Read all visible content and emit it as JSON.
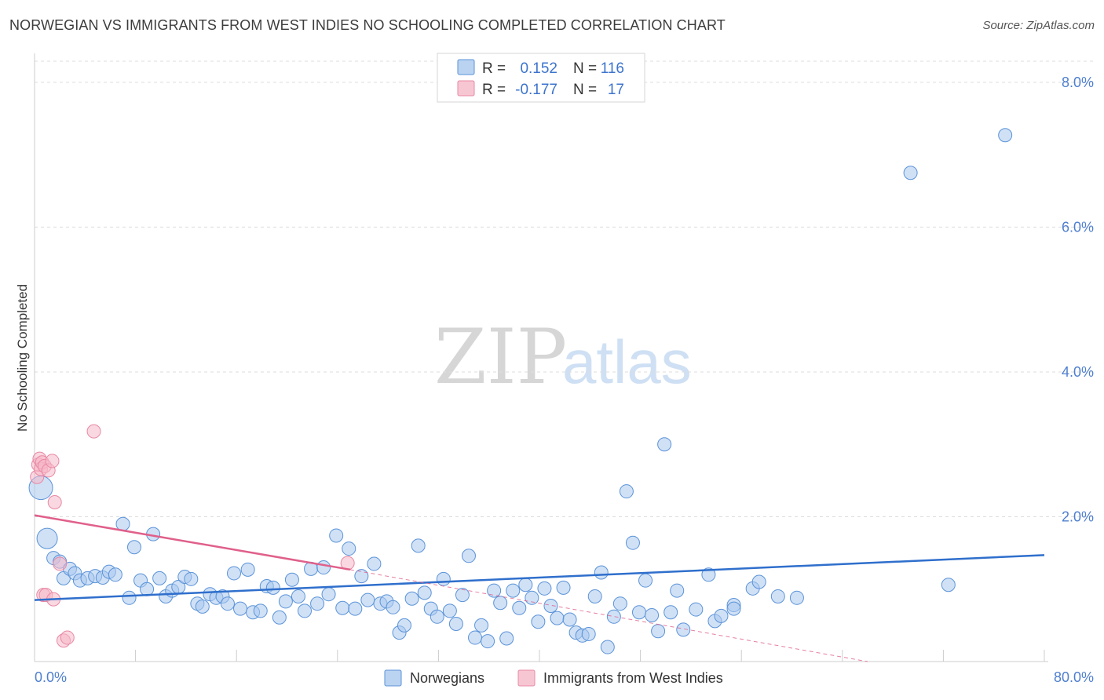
{
  "header": {
    "title": "NORWEGIAN VS IMMIGRANTS FROM WEST INDIES NO SCHOOLING COMPLETED CORRELATION CHART",
    "source": "Source: ZipAtlas.com"
  },
  "watermark": {
    "zip": "ZIP",
    "atlas": "atlas"
  },
  "colors": {
    "blue_fill": "#a9c8ee",
    "blue_stroke": "#5b93d8",
    "blue_line": "#2f6fcc",
    "pink_fill": "#f5b8c8",
    "pink_stroke": "#e888a4",
    "pink_line": "#e0608a",
    "grid": "#dddddd",
    "tick_text": "#4f7fcf"
  },
  "legend": {
    "rows": [
      {
        "r_label": "R =",
        "r_value": "0.152",
        "n_label": "N =",
        "n_value": "116"
      },
      {
        "r_label": "R =",
        "r_value": "-0.177",
        "n_label": "N =",
        "n_value": "17"
      }
    ]
  },
  "chart_data": {
    "type": "scatter",
    "title": "NORWEGIAN VS IMMIGRANTS FROM WEST INDIES NO SCHOOLING COMPLETED CORRELATION CHART",
    "xlabel": "",
    "ylabel": "No Schooling Completed",
    "xlim": [
      0,
      80
    ],
    "ylim": [
      0,
      8.4
    ],
    "x_tick_labels": [
      "0.0%",
      "80.0%"
    ],
    "y_tick_labels": [
      "2.0%",
      "4.0%",
      "6.0%",
      "8.0%"
    ],
    "y_ticks": [
      2,
      4,
      6,
      8
    ],
    "legend_position": "bottom-center",
    "series": [
      {
        "name": "Norwegians",
        "color": "#a9c8ee",
        "r": 0.152,
        "n": 116,
        "trend": {
          "x": [
            0,
            80
          ],
          "y": [
            0.85,
            1.47
          ]
        },
        "trend_style": "solid",
        "points": [
          {
            "x": 0.5,
            "y": 2.4,
            "s": "xl"
          },
          {
            "x": 1.0,
            "y": 1.7,
            "s": "l"
          },
          {
            "x": 1.5,
            "y": 1.43
          },
          {
            "x": 2.0,
            "y": 1.38
          },
          {
            "x": 2.3,
            "y": 1.15
          },
          {
            "x": 2.8,
            "y": 1.28
          },
          {
            "x": 3.2,
            "y": 1.22
          },
          {
            "x": 3.6,
            "y": 1.12
          },
          {
            "x": 4.2,
            "y": 1.15
          },
          {
            "x": 4.8,
            "y": 1.18
          },
          {
            "x": 5.4,
            "y": 1.16
          },
          {
            "x": 5.9,
            "y": 1.24
          },
          {
            "x": 6.4,
            "y": 1.2
          },
          {
            "x": 7.0,
            "y": 1.9
          },
          {
            "x": 7.5,
            "y": 0.88
          },
          {
            "x": 7.9,
            "y": 1.58
          },
          {
            "x": 8.4,
            "y": 1.12
          },
          {
            "x": 8.9,
            "y": 1.0
          },
          {
            "x": 9.4,
            "y": 1.76
          },
          {
            "x": 9.9,
            "y": 1.15
          },
          {
            "x": 10.4,
            "y": 0.9
          },
          {
            "x": 10.9,
            "y": 0.98
          },
          {
            "x": 11.4,
            "y": 1.03
          },
          {
            "x": 11.9,
            "y": 1.17
          },
          {
            "x": 12.4,
            "y": 1.14
          },
          {
            "x": 12.9,
            "y": 0.8
          },
          {
            "x": 13.3,
            "y": 0.76
          },
          {
            "x": 13.9,
            "y": 0.93
          },
          {
            "x": 14.4,
            "y": 0.88
          },
          {
            "x": 14.9,
            "y": 0.9
          },
          {
            "x": 15.3,
            "y": 0.8
          },
          {
            "x": 15.8,
            "y": 1.22
          },
          {
            "x": 16.3,
            "y": 0.73
          },
          {
            "x": 16.9,
            "y": 1.27
          },
          {
            "x": 17.3,
            "y": 0.68
          },
          {
            "x": 17.9,
            "y": 0.7
          },
          {
            "x": 18.4,
            "y": 1.04
          },
          {
            "x": 18.9,
            "y": 1.02
          },
          {
            "x": 19.4,
            "y": 0.61
          },
          {
            "x": 19.9,
            "y": 0.83
          },
          {
            "x": 20.4,
            "y": 1.13
          },
          {
            "x": 20.9,
            "y": 0.9
          },
          {
            "x": 21.4,
            "y": 0.7
          },
          {
            "x": 21.9,
            "y": 1.28
          },
          {
            "x": 22.4,
            "y": 0.8
          },
          {
            "x": 22.9,
            "y": 1.3
          },
          {
            "x": 23.3,
            "y": 0.93
          },
          {
            "x": 23.9,
            "y": 1.74
          },
          {
            "x": 24.4,
            "y": 0.74
          },
          {
            "x": 24.9,
            "y": 1.56
          },
          {
            "x": 25.4,
            "y": 0.73
          },
          {
            "x": 25.9,
            "y": 1.18
          },
          {
            "x": 26.4,
            "y": 0.85
          },
          {
            "x": 26.9,
            "y": 1.35
          },
          {
            "x": 27.4,
            "y": 0.8
          },
          {
            "x": 27.9,
            "y": 0.83
          },
          {
            "x": 28.4,
            "y": 0.75
          },
          {
            "x": 28.9,
            "y": 0.4
          },
          {
            "x": 29.3,
            "y": 0.5
          },
          {
            "x": 29.9,
            "y": 0.87
          },
          {
            "x": 30.4,
            "y": 1.6
          },
          {
            "x": 30.9,
            "y": 0.95
          },
          {
            "x": 31.4,
            "y": 0.73
          },
          {
            "x": 31.9,
            "y": 0.62
          },
          {
            "x": 32.4,
            "y": 1.14
          },
          {
            "x": 32.9,
            "y": 0.7
          },
          {
            "x": 33.4,
            "y": 0.52
          },
          {
            "x": 33.9,
            "y": 0.92
          },
          {
            "x": 34.4,
            "y": 1.46
          },
          {
            "x": 34.9,
            "y": 0.33
          },
          {
            "x": 35.4,
            "y": 0.5
          },
          {
            "x": 35.9,
            "y": 0.28
          },
          {
            "x": 36.4,
            "y": 0.98
          },
          {
            "x": 36.9,
            "y": 0.81
          },
          {
            "x": 37.4,
            "y": 0.32
          },
          {
            "x": 37.9,
            "y": 0.98
          },
          {
            "x": 38.4,
            "y": 0.74
          },
          {
            "x": 38.9,
            "y": 1.06
          },
          {
            "x": 39.4,
            "y": 0.88
          },
          {
            "x": 39.9,
            "y": 0.55
          },
          {
            "x": 40.4,
            "y": 1.01
          },
          {
            "x": 40.9,
            "y": 0.77
          },
          {
            "x": 41.4,
            "y": 0.6
          },
          {
            "x": 41.9,
            "y": 1.02
          },
          {
            "x": 42.4,
            "y": 0.58
          },
          {
            "x": 42.9,
            "y": 0.4
          },
          {
            "x": 43.4,
            "y": 0.36
          },
          {
            "x": 43.9,
            "y": 0.38
          },
          {
            "x": 44.4,
            "y": 0.9
          },
          {
            "x": 44.9,
            "y": 1.23
          },
          {
            "x": 45.4,
            "y": 0.2
          },
          {
            "x": 45.9,
            "y": 0.62
          },
          {
            "x": 46.4,
            "y": 0.8
          },
          {
            "x": 46.9,
            "y": 2.35
          },
          {
            "x": 47.4,
            "y": 1.64
          },
          {
            "x": 47.9,
            "y": 0.68
          },
          {
            "x": 48.4,
            "y": 1.12
          },
          {
            "x": 48.9,
            "y": 0.64
          },
          {
            "x": 49.4,
            "y": 0.42
          },
          {
            "x": 49.9,
            "y": 3.0
          },
          {
            "x": 50.4,
            "y": 0.68
          },
          {
            "x": 50.9,
            "y": 0.98
          },
          {
            "x": 51.4,
            "y": 0.44
          },
          {
            "x": 52.4,
            "y": 0.72
          },
          {
            "x": 53.4,
            "y": 1.2
          },
          {
            "x": 53.9,
            "y": 0.56
          },
          {
            "x": 54.4,
            "y": 0.63
          },
          {
            "x": 55.4,
            "y": 0.78
          },
          {
            "x": 56.9,
            "y": 1.01
          },
          {
            "x": 57.4,
            "y": 1.1
          },
          {
            "x": 58.9,
            "y": 0.9
          },
          {
            "x": 60.4,
            "y": 0.88
          },
          {
            "x": 69.4,
            "y": 6.75
          },
          {
            "x": 72.4,
            "y": 1.06
          },
          {
            "x": 76.9,
            "y": 7.27
          },
          {
            "x": 55.4,
            "y": 0.73
          }
        ]
      },
      {
        "name": "Immigrants from West Indies",
        "color": "#f5b8c8",
        "r": -0.177,
        "n": 17,
        "trend": {
          "x": [
            0,
            25
          ],
          "y": [
            2.02,
            1.27
          ]
        },
        "trend_dashed_extension": {
          "x": [
            25,
            66
          ],
          "y": [
            1.27,
            0.0
          ]
        },
        "points": [
          {
            "x": 0.2,
            "y": 2.55
          },
          {
            "x": 0.3,
            "y": 2.72
          },
          {
            "x": 0.4,
            "y": 2.8
          },
          {
            "x": 0.5,
            "y": 2.66
          },
          {
            "x": 0.6,
            "y": 2.75
          },
          {
            "x": 0.7,
            "y": 0.92
          },
          {
            "x": 0.8,
            "y": 2.7
          },
          {
            "x": 0.9,
            "y": 0.92
          },
          {
            "x": 1.1,
            "y": 2.64
          },
          {
            "x": 1.4,
            "y": 2.77
          },
          {
            "x": 1.5,
            "y": 0.86
          },
          {
            "x": 1.6,
            "y": 2.2
          },
          {
            "x": 2.0,
            "y": 1.35
          },
          {
            "x": 2.3,
            "y": 0.29
          },
          {
            "x": 2.6,
            "y": 0.33
          },
          {
            "x": 4.7,
            "y": 3.18
          },
          {
            "x": 24.8,
            "y": 1.36
          }
        ]
      }
    ]
  },
  "bottom_legend": {
    "items": [
      {
        "label": "Norwegians"
      },
      {
        "label": "Immigrants from West Indies"
      }
    ]
  }
}
